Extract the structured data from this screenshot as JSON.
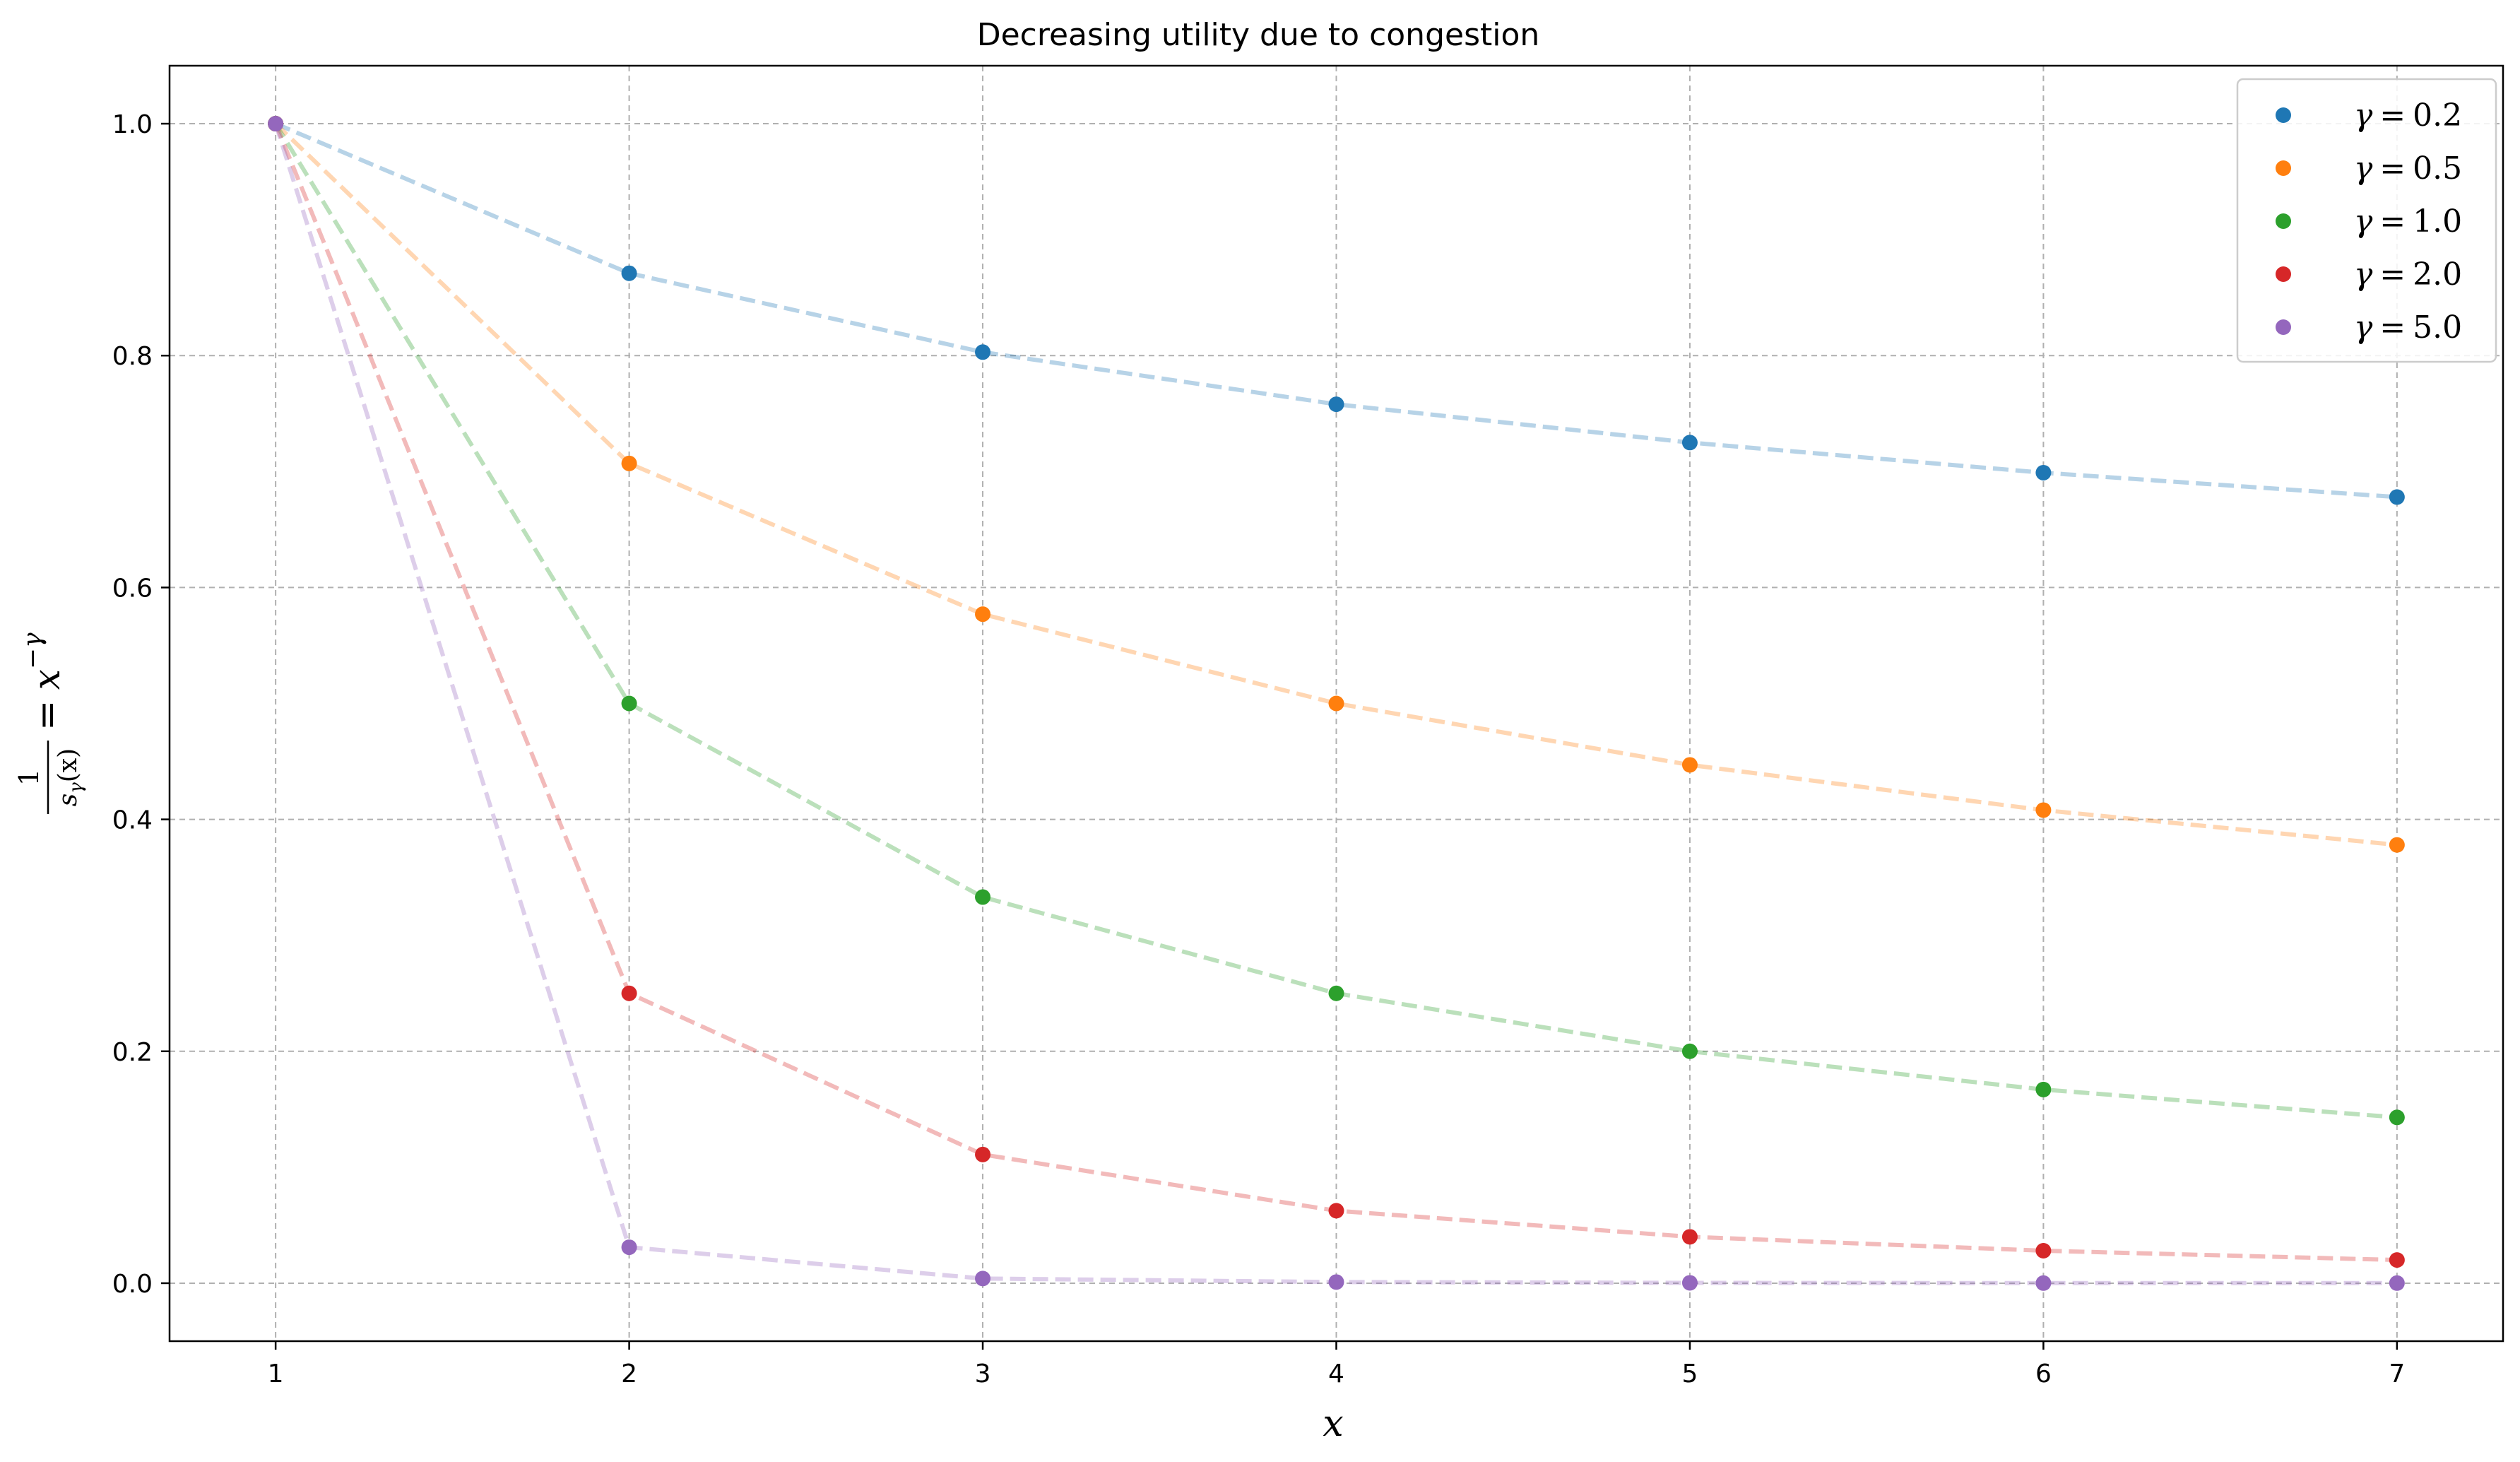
{
  "chart_data": {
    "type": "line",
    "title": "Decreasing utility due to congestion",
    "xlabel": "x",
    "ylabel": "1/s_γ(x) = x^(−γ)",
    "ylabel_parts": {
      "num": "1",
      "den_s": "s",
      "den_sub": "γ",
      "den_arg": "(x)",
      "eq": "=",
      "base": "x",
      "exp": "−γ"
    },
    "xlim": [
      0.7,
      7.3
    ],
    "ylim": [
      -0.05,
      1.05
    ],
    "x": [
      1,
      2,
      3,
      4,
      5,
      6,
      7
    ],
    "x_ticks": [
      {
        "value": 1,
        "label": "1"
      },
      {
        "value": 2,
        "label": "2"
      },
      {
        "value": 3,
        "label": "3"
      },
      {
        "value": 4,
        "label": "4"
      },
      {
        "value": 5,
        "label": "5"
      },
      {
        "value": 6,
        "label": "6"
      },
      {
        "value": 7,
        "label": "7"
      }
    ],
    "y_ticks": [
      {
        "value": 0.0,
        "label": "0.0"
      },
      {
        "value": 0.2,
        "label": "0.2"
      },
      {
        "value": 0.4,
        "label": "0.4"
      },
      {
        "value": 0.6,
        "label": "0.6"
      },
      {
        "value": 0.8,
        "label": "0.8"
      },
      {
        "value": 1.0,
        "label": "1.0"
      }
    ],
    "grid": true,
    "grid_style": "dashed",
    "legend_position": "top-right",
    "line_style": "dashed",
    "series": [
      {
        "name": "γ = 0.2",
        "symbol": "γ",
        "eq": "=",
        "num": "0.2",
        "color": "#1f77b4",
        "values": [
          1.0,
          0.871,
          0.803,
          0.758,
          0.725,
          0.699,
          0.678
        ]
      },
      {
        "name": "γ = 0.5",
        "symbol": "γ",
        "eq": "=",
        "num": "0.5",
        "color": "#ff7f0e",
        "values": [
          1.0,
          0.707,
          0.577,
          0.5,
          0.447,
          0.408,
          0.378
        ]
      },
      {
        "name": "γ = 1.0",
        "symbol": "γ",
        "eq": "=",
        "num": "1.0",
        "color": "#2ca02c",
        "values": [
          1.0,
          0.5,
          0.333,
          0.25,
          0.2,
          0.167,
          0.143
        ]
      },
      {
        "name": "γ = 2.0",
        "symbol": "γ",
        "eq": "=",
        "num": "2.0",
        "color": "#d62728",
        "values": [
          1.0,
          0.25,
          0.111,
          0.0625,
          0.04,
          0.028,
          0.02
        ]
      },
      {
        "name": "γ = 5.0",
        "symbol": "γ",
        "eq": "=",
        "num": "5.0",
        "color": "#9467bd",
        "values": [
          1.0,
          0.031,
          0.004,
          0.001,
          0.0003,
          0.0001,
          0.0001
        ]
      }
    ]
  }
}
